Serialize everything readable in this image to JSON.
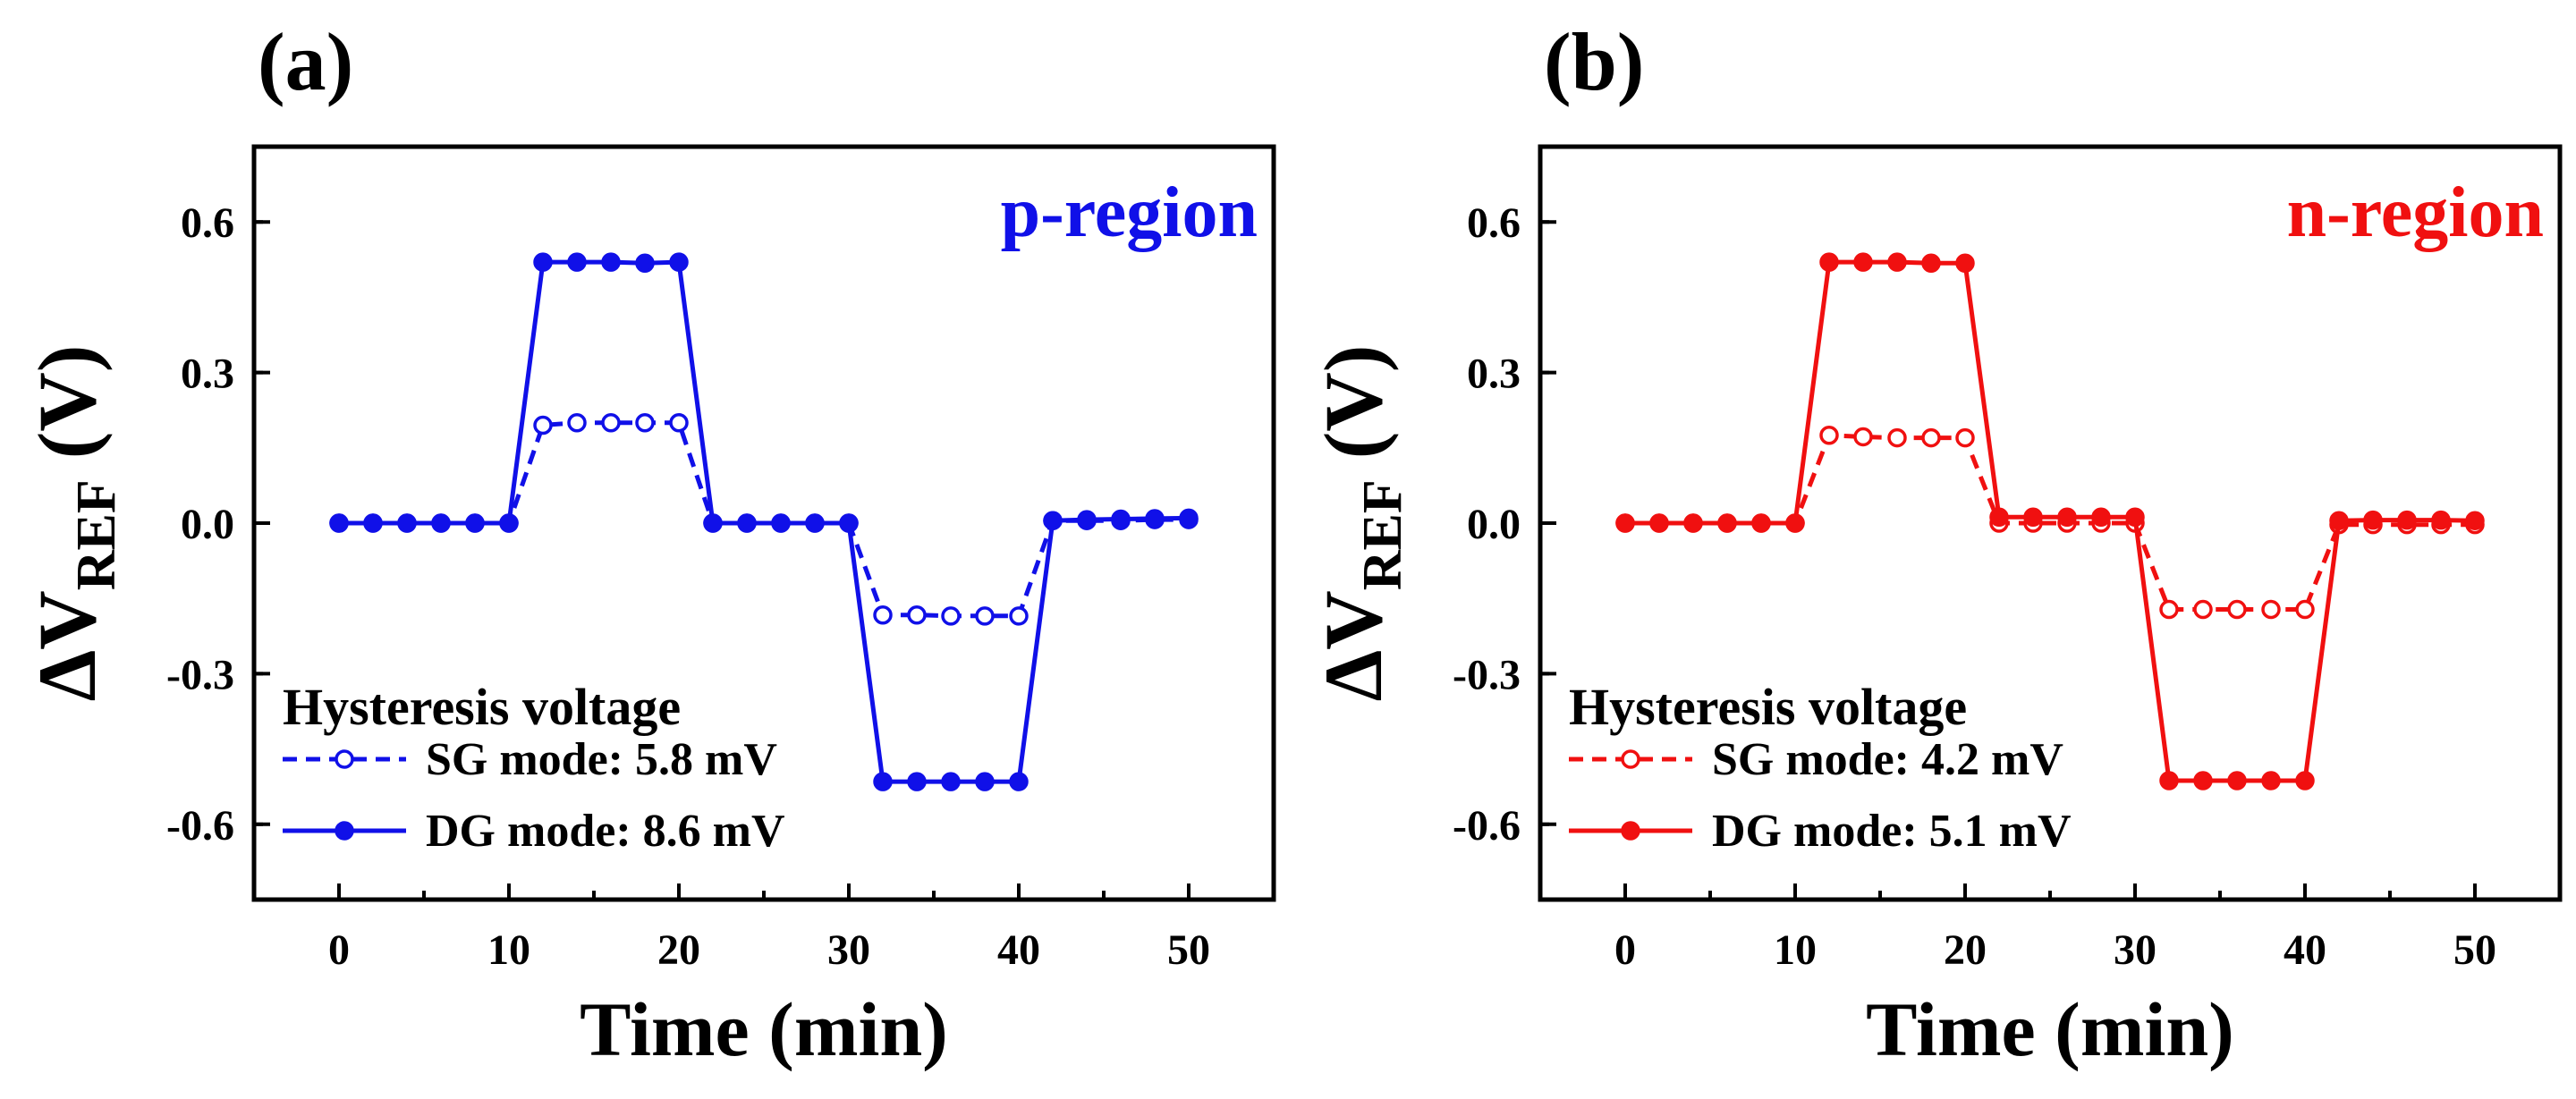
{
  "chart_data": [
    {
      "type": "line",
      "panel": "(a)",
      "region_label": "p-region",
      "color": "#1010e8",
      "xlabel": "Time (min)",
      "ylabel_prefix": "ΔV",
      "ylabel_sub": "REF",
      "ylabel_suffix": " (V)",
      "xlim": [
        -5,
        55
      ],
      "ylim": [
        -0.75,
        0.75
      ],
      "xticks": [
        0,
        10,
        20,
        30,
        40,
        50
      ],
      "xtick_labels": [
        "0",
        "10",
        "20",
        "30",
        "40",
        "50"
      ],
      "yticks": [
        0.6,
        0.3,
        0.0,
        -0.3,
        -0.6
      ],
      "ytick_labels": [
        "0.6",
        "0.3",
        "0.0",
        "-0.3",
        "-0.6"
      ],
      "legend_title": "Hysteresis voltage",
      "series": [
        {
          "name": "SG mode: 5.8 mV",
          "style": "dashed-open",
          "x": [
            0,
            2,
            4,
            6,
            8,
            10,
            12,
            14,
            16,
            18,
            20,
            22,
            24,
            26,
            28,
            30,
            32,
            34,
            36,
            38,
            40,
            42,
            44,
            46,
            48,
            50
          ],
          "y": [
            0,
            0,
            0,
            0,
            0,
            0,
            0.195,
            0.2,
            0.2,
            0.2,
            0.2,
            0,
            0,
            0,
            0,
            0,
            -0.183,
            -0.183,
            -0.185,
            -0.185,
            -0.185,
            0.005,
            0.005,
            0.005,
            0.007,
            0.007
          ]
        },
        {
          "name": "DG mode: 8.6 mV",
          "style": "solid-filled",
          "x": [
            0,
            2,
            4,
            6,
            8,
            10,
            12,
            14,
            16,
            18,
            20,
            22,
            24,
            26,
            28,
            30,
            32,
            34,
            36,
            38,
            40,
            42,
            44,
            46,
            48,
            50
          ],
          "y": [
            0,
            0,
            0,
            0,
            0,
            0,
            0.52,
            0.52,
            0.52,
            0.518,
            0.52,
            0,
            0,
            0,
            0,
            0,
            -0.515,
            -0.515,
            -0.515,
            -0.515,
            -0.515,
            0.005,
            0.007,
            0.008,
            0.009,
            0.01
          ]
        }
      ]
    },
    {
      "type": "line",
      "panel": "(b)",
      "region_label": "n-region",
      "color": "#f01010",
      "xlabel": "Time (min)",
      "ylabel_prefix": "ΔV",
      "ylabel_sub": "REF",
      "ylabel_suffix": " (V)",
      "xlim": [
        -5,
        55
      ],
      "ylim": [
        -0.75,
        0.75
      ],
      "xticks": [
        0,
        10,
        20,
        30,
        40,
        50
      ],
      "xtick_labels": [
        "0",
        "10",
        "20",
        "30",
        "40",
        "50"
      ],
      "yticks": [
        0.6,
        0.3,
        0.0,
        -0.3,
        -0.6
      ],
      "ytick_labels": [
        "0.6",
        "0.3",
        "0.0",
        "-0.3",
        "-0.6"
      ],
      "legend_title": "Hysteresis voltage",
      "series": [
        {
          "name": "SG mode: 4.2 mV",
          "style": "dashed-open",
          "x": [
            0,
            2,
            4,
            6,
            8,
            10,
            12,
            14,
            16,
            18,
            20,
            22,
            24,
            26,
            28,
            30,
            32,
            34,
            36,
            38,
            40,
            42,
            44,
            46,
            48,
            50
          ],
          "y": [
            0,
            0,
            0,
            0,
            0,
            0,
            0.175,
            0.172,
            0.17,
            0.17,
            0.17,
            0,
            0,
            0,
            0,
            0,
            -0.172,
            -0.172,
            -0.172,
            -0.172,
            -0.172,
            -0.003,
            -0.003,
            -0.003,
            -0.003,
            -0.003
          ]
        },
        {
          "name": "DG mode: 5.1 mV",
          "style": "solid-filled",
          "x": [
            0,
            2,
            4,
            6,
            8,
            10,
            12,
            14,
            16,
            18,
            20,
            22,
            24,
            26,
            28,
            30,
            32,
            34,
            36,
            38,
            40,
            42,
            44,
            46,
            48,
            50
          ],
          "y": [
            0,
            0,
            0,
            0,
            0,
            0,
            0.52,
            0.52,
            0.52,
            0.518,
            0.518,
            0.012,
            0.012,
            0.012,
            0.012,
            0.012,
            -0.513,
            -0.513,
            -0.513,
            -0.513,
            -0.513,
            0.005,
            0.006,
            0.006,
            0.006,
            0.005
          ]
        }
      ]
    }
  ]
}
